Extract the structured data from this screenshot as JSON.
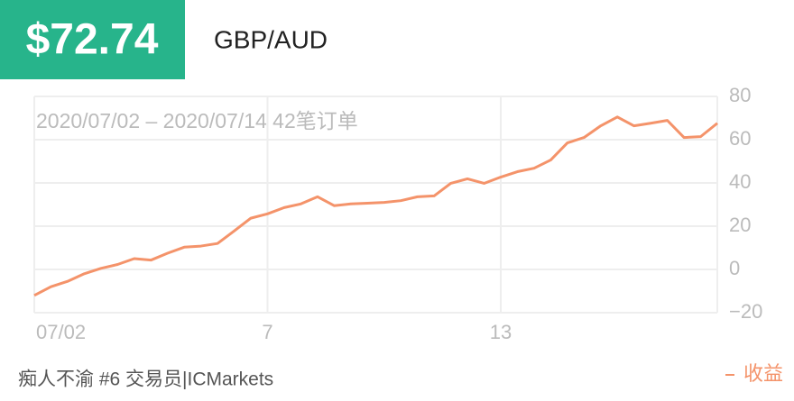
{
  "header": {
    "price": "$72.74",
    "pair": "GBP/AUD"
  },
  "footer": {
    "author": "痴人不渝 #6 交易员|ICMarkets"
  },
  "chart_data": {
    "type": "line",
    "subtitle": "2020/07/02 – 2020/07/14 42笔订单",
    "categories": [
      "07/02",
      null,
      null,
      null,
      null,
      null,
      null,
      null,
      null,
      null,
      null,
      null,
      null,
      null,
      "7",
      null,
      null,
      null,
      null,
      null,
      null,
      null,
      null,
      null,
      null,
      null,
      null,
      null,
      "13",
      null,
      null,
      null,
      null,
      null,
      null,
      null,
      null,
      null,
      null,
      null,
      null,
      null
    ],
    "series": [
      {
        "name": "收益",
        "color": "#f4936a",
        "values": [
          -12,
          -8,
          -5.5,
          -2,
          0.5,
          2.3,
          5,
          4.3,
          7.5,
          10.3,
          10.8,
          12,
          17.8,
          23.7,
          25.7,
          28.6,
          30.3,
          33.6,
          29.5,
          30.3,
          30.6,
          31,
          31.8,
          33.6,
          34,
          39.8,
          41.9,
          39.8,
          42.7,
          45.2,
          46.8,
          50.6,
          58.5,
          61,
          66.4,
          70.5,
          66.4,
          67.6,
          68.9,
          61,
          61.4,
          67.6
        ]
      }
    ],
    "ylim": [
      -20,
      80
    ],
    "yticks": [
      {
        "value": -20,
        "label": "−20"
      },
      0,
      20,
      40,
      60,
      80
    ],
    "grid": true,
    "legend": "bottom-right"
  }
}
